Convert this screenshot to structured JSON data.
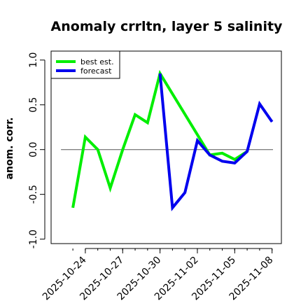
{
  "chart_data": {
    "type": "line",
    "title": "Anomaly crrltn, layer 5 salinity",
    "ylabel": "anom. corr.",
    "xlabel": "",
    "ylim": [
      -1.05,
      1.1
    ],
    "yticks": [
      -1.0,
      -0.5,
      0.0,
      0.5,
      1.0
    ],
    "ytick_labels": [
      "-1.0",
      "-0.5",
      "0.0",
      "0.5",
      "1.0"
    ],
    "x_dates": [
      "2025-10-23",
      "2025-10-24",
      "2025-10-25",
      "2025-10-26",
      "2025-10-27",
      "2025-10-28",
      "2025-10-29",
      "2025-10-30",
      "2025-10-31",
      "2025-11-01",
      "2025-11-02",
      "2025-11-03",
      "2025-11-04",
      "2025-11-05",
      "2025-11-06",
      "2025-11-07",
      "2025-11-08"
    ],
    "xlim": [
      "2025-10-21T06:00",
      "2025-11-08T18:00"
    ],
    "xticks": [
      {
        "date": "2025-10-24",
        "label": "2025-10-24",
        "color": "#000000"
      },
      {
        "date": "2025-10-27",
        "label": "2025-10-27",
        "color": "#000000"
      },
      {
        "date": "2025-10-30",
        "label": "2025-10-30",
        "color": "#228B22"
      },
      {
        "date": "2025-11-02",
        "label": "2025-11-02",
        "color": "#000000"
      },
      {
        "date": "2025-11-05",
        "label": "2025-11-05",
        "color": "#000000"
      },
      {
        "date": "2025-11-08",
        "label": "2025-11-08",
        "color": "#000000"
      }
    ],
    "reference_line": 0.0,
    "series": [
      {
        "name": "best est.",
        "color": "#00ee00",
        "x": [
          "2025-10-23",
          "2025-10-24",
          "2025-10-25",
          "2025-10-26",
          "2025-10-27",
          "2025-10-28",
          "2025-10-29",
          "2025-10-30",
          "2025-11-03",
          "2025-11-04",
          "2025-11-05",
          "2025-11-06"
        ],
        "values": [
          -0.65,
          0.14,
          0.0,
          -0.43,
          0.0,
          0.39,
          0.3,
          0.85,
          -0.06,
          -0.04,
          -0.11,
          -0.02
        ]
      },
      {
        "name": "forecast",
        "color": "#0000ee",
        "x": [
          "2025-10-30",
          "2025-10-31",
          "2025-11-01",
          "2025-11-02",
          "2025-11-03",
          "2025-11-04",
          "2025-11-05",
          "2025-11-06",
          "2025-11-07",
          "2025-11-08"
        ],
        "values": [
          0.85,
          -0.65,
          -0.48,
          0.1,
          -0.06,
          -0.13,
          -0.15,
          -0.02,
          0.51,
          0.31
        ]
      }
    ],
    "legend": {
      "position": "top-left"
    },
    "grid": false
  }
}
